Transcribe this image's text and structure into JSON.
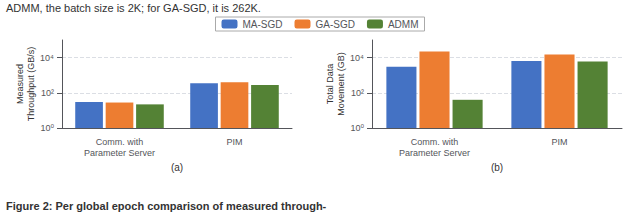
{
  "chart_data": [
    {
      "type": "bar",
      "xlabel": "(a)",
      "ylabel": "Measured\nThroughput (GB/s)",
      "categories": [
        "Comm. with\nParameter Server",
        "PIM"
      ],
      "series": [
        {
          "name": "MA-SGD",
          "color": "#4472C4",
          "values": [
            30,
            350
          ]
        },
        {
          "name": "GA-SGD",
          "color": "#ED7D31",
          "values": [
            28,
            400
          ]
        },
        {
          "name": "ADMM",
          "color": "#548235",
          "values": [
            22,
            280
          ]
        }
      ],
      "log": "y",
      "ylim": [
        1,
        100000
      ],
      "yticks": [
        {
          "value": 1,
          "label": "10⁰"
        },
        {
          "value": 100,
          "label": "10²"
        },
        {
          "value": 10000,
          "label": "10⁴"
        }
      ],
      "grid": true,
      "legend": "top"
    },
    {
      "type": "bar",
      "xlabel": "(b)",
      "ylabel": "Total Data\nMovement (GB)",
      "categories": [
        "Comm. with\nParameter Server",
        "PIM"
      ],
      "series": [
        {
          "name": "MA-SGD",
          "color": "#4472C4",
          "values": [
            3000,
            6500
          ]
        },
        {
          "name": "GA-SGD",
          "color": "#ED7D31",
          "values": [
            22000,
            15000
          ]
        },
        {
          "name": "ADMM",
          "color": "#548235",
          "values": [
            40,
            6000
          ]
        }
      ],
      "log": "y",
      "ylim": [
        1,
        100000
      ],
      "yticks": [
        {
          "value": 1,
          "label": "10⁰"
        },
        {
          "value": 100,
          "label": "10²"
        },
        {
          "value": 10000,
          "label": "10⁴"
        }
      ],
      "grid": true,
      "legend": "top"
    }
  ],
  "annotations": [
    "ADMM, the batch size is 2K; for GA-SGD, it is 262K.",
    "Figure 2: Per global epoch comparison of measured through-"
  ]
}
